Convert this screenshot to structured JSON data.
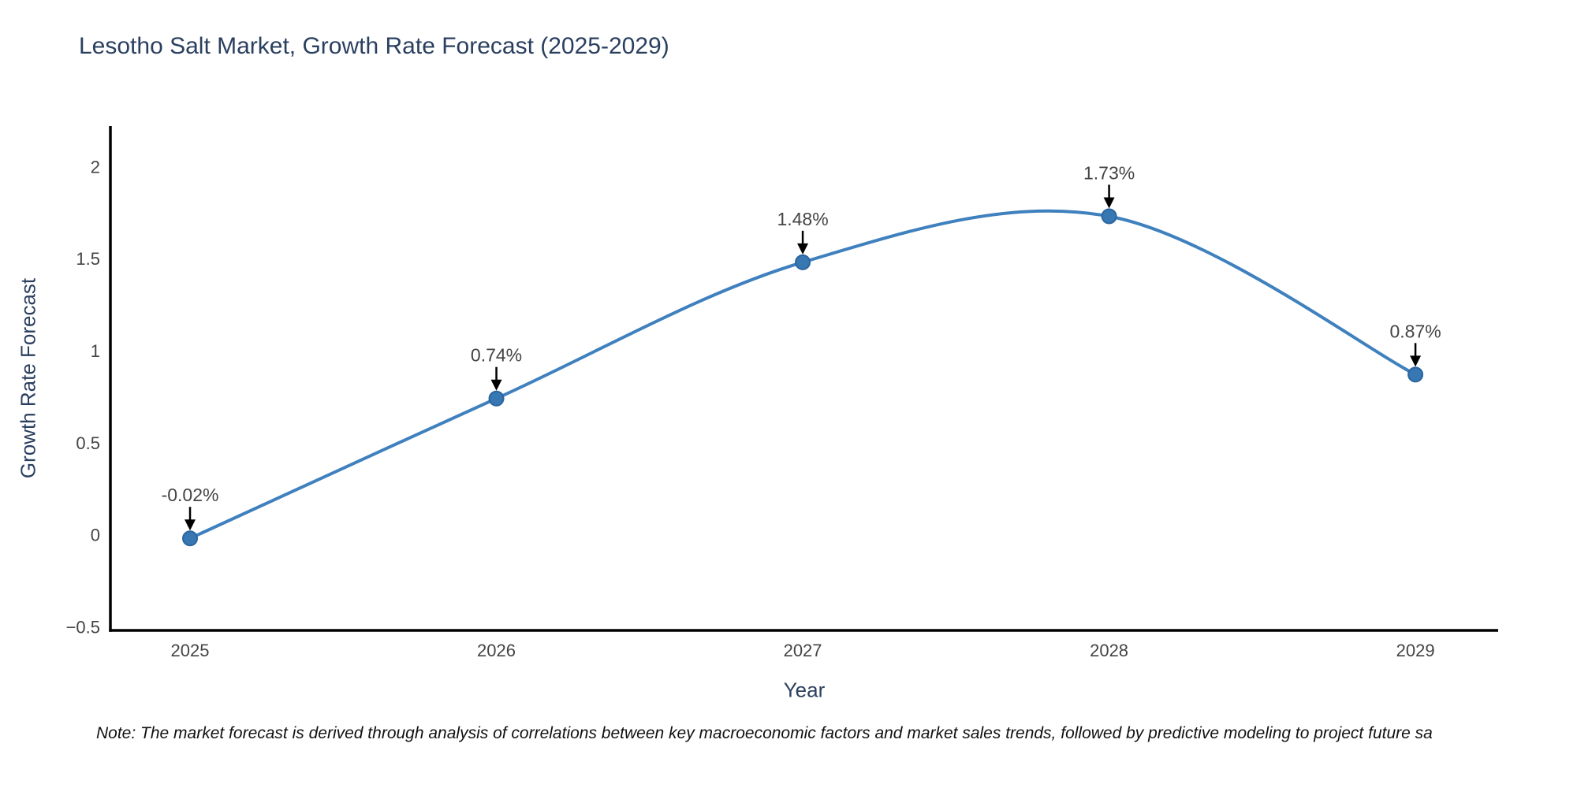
{
  "chart_data": {
    "type": "line",
    "title": "Lesotho Salt Market, Growth Rate Forecast (2025-2029)",
    "xlabel": "Year",
    "ylabel": "Growth Rate Forecast",
    "x": [
      2025,
      2026,
      2027,
      2028,
      2029
    ],
    "y": [
      -0.02,
      0.74,
      1.48,
      1.73,
      0.87
    ],
    "point_labels": [
      "-0.02%",
      "0.74%",
      "1.48%",
      "1.73%",
      "0.87%"
    ],
    "x_tick_labels": [
      "2025",
      "2026",
      "2027",
      "2028",
      "2029"
    ],
    "y_ticks": [
      2,
      1.5,
      1,
      0.5,
      0,
      -0.5
    ],
    "y_tick_labels": [
      "2",
      "1.5",
      "1",
      "0.5",
      "0",
      "−0.5"
    ],
    "xlim": [
      2024.74,
      2029.27
    ],
    "ylim": [
      -0.52,
      2.22
    ],
    "grid": false,
    "legend": "none",
    "line_shape": "spline",
    "annotation_arrows": "down-to-point",
    "colors": {
      "line": "#3f80be",
      "marker_fill": "#3778b2",
      "marker_edge": "#2b65a0",
      "axis_line": "#000000",
      "title_text": "#2a3f5f",
      "tick_text": "#444444",
      "annotation_text": "#444444",
      "arrow": "#000000",
      "background": "#ffffff"
    }
  },
  "note": {
    "text": "Note: The market forecast is derived through analysis of correlations between key macroeconomic factors and market sales trends, followed by predictive modeling to project future sa"
  }
}
